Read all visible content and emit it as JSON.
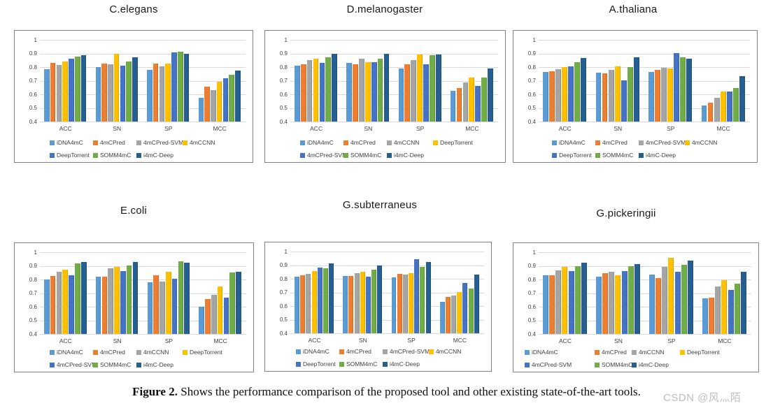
{
  "page": {
    "caption": {
      "label": "Figure 2.",
      "text": " Shows the performance comparison of the proposed tool and other existing state-of-the-art tools."
    },
    "watermark": "CSDN @风灬陌"
  },
  "palette": {
    "light_blue": "#5B9BD5",
    "orange": "#ED7D31",
    "gray": "#A5A5A5",
    "gold": "#FFC000",
    "blue": "#4472C4",
    "green": "#70AD47",
    "navy": "#255E91"
  },
  "chart_data": [
    {
      "type": "bar",
      "title": "C.elegans",
      "categories": [
        "ACC",
        "SN",
        "SP",
        "MCC"
      ],
      "ylim": [
        0.4,
        1.0
      ],
      "ytick_labels": [
        "1",
        "0.9",
        "0.8",
        "0.7",
        "0.6",
        "0.5",
        "0.4"
      ],
      "grid": true,
      "legend_position": "bottom",
      "series": [
        {
          "name": "iDNA4mC",
          "color": "#5B9BD5",
          "values": [
            0.785,
            0.8,
            0.777,
            0.572
          ]
        },
        {
          "name": "4mCPred",
          "color": "#ED7D31",
          "values": [
            0.829,
            0.826,
            0.828,
            0.654
          ]
        },
        {
          "name": "4mCPred-SVM",
          "color": "#A5A5A5",
          "values": [
            0.815,
            0.823,
            0.807,
            0.632
          ]
        },
        {
          "name": "4mCCNN",
          "color": "#FFC000",
          "values": [
            0.843,
            0.895,
            0.826,
            0.694
          ]
        },
        {
          "name": "DeepTorrent",
          "color": "#4472C4",
          "values": [
            0.86,
            0.812,
            0.907,
            0.718
          ]
        },
        {
          "name": "SOMM4mC",
          "color": "#70AD47",
          "values": [
            0.877,
            0.84,
            0.913,
            0.744
          ]
        },
        {
          "name": "i4mC-Deep",
          "color": "#255E91",
          "values": [
            0.885,
            0.874,
            0.9,
            0.773
          ]
        }
      ]
    },
    {
      "type": "bar",
      "title": "D.melanogaster",
      "categories": [
        "ACC",
        "SN",
        "SP",
        "MCC"
      ],
      "ylim": [
        0.4,
        1.0
      ],
      "ytick_labels": [
        "1",
        "0.9",
        "0.8",
        "0.7",
        "0.6",
        "0.5",
        "0.4"
      ],
      "grid": true,
      "legend_position": "bottom",
      "series": [
        {
          "name": "iDNA4mC",
          "color": "#5B9BD5",
          "values": [
            0.812,
            0.832,
            0.79,
            0.627
          ]
        },
        {
          "name": "4mCPred",
          "color": "#ED7D31",
          "values": [
            0.822,
            0.822,
            0.822,
            0.648
          ]
        },
        {
          "name": "4mCCNN",
          "color": "#A5A5A5",
          "values": [
            0.852,
            0.864,
            0.852,
            0.687
          ]
        },
        {
          "name": "DeepTorrent",
          "color": "#FFC000",
          "values": [
            0.862,
            0.834,
            0.89,
            0.724
          ]
        },
        {
          "name": "4mCPred-SVM",
          "color": "#4472C4",
          "values": [
            0.83,
            0.838,
            0.822,
            0.663
          ]
        },
        {
          "name": "SOMM4mC",
          "color": "#70AD47",
          "values": [
            0.873,
            0.863,
            0.887,
            0.722
          ]
        },
        {
          "name": "i4mC-Deep",
          "color": "#255E91",
          "values": [
            0.895,
            0.9,
            0.89,
            0.79
          ]
        }
      ]
    },
    {
      "type": "bar",
      "title": "A.thaliana",
      "categories": [
        "ACC",
        "SN",
        "SP",
        "MCC"
      ],
      "ylim": [
        0.4,
        1.0
      ],
      "ytick_labels": [
        "1",
        "0.9",
        "0.8",
        "0.7",
        "0.6",
        "0.5",
        "0.4"
      ],
      "grid": true,
      "legend_position": "bottom",
      "series": [
        {
          "name": "iDNA4mC",
          "color": "#5B9BD5",
          "values": [
            0.762,
            0.757,
            0.762,
            0.52
          ]
        },
        {
          "name": "4mCPred",
          "color": "#ED7D31",
          "values": [
            0.768,
            0.754,
            0.78,
            0.538
          ]
        },
        {
          "name": "4mCPred-SVM",
          "color": "#A5A5A5",
          "values": [
            0.787,
            0.778,
            0.797,
            0.573
          ]
        },
        {
          "name": "4mCCNN",
          "color": "#FFC000",
          "values": [
            0.8,
            0.805,
            0.792,
            0.622
          ]
        },
        {
          "name": "DeepTorrent",
          "color": "#4472C4",
          "values": [
            0.804,
            0.703,
            0.902,
            0.62
          ]
        },
        {
          "name": "SOMM4mC",
          "color": "#70AD47",
          "values": [
            0.835,
            0.8,
            0.873,
            0.647
          ]
        },
        {
          "name": "i4mC-Deep",
          "color": "#255E91",
          "values": [
            0.867,
            0.87,
            0.862,
            0.732
          ]
        }
      ]
    },
    {
      "type": "bar",
      "title": "E.coli",
      "categories": [
        "ACC",
        "SN",
        "SP",
        "MCC"
      ],
      "ylim": [
        0.4,
        1.0
      ],
      "ytick_labels": [
        "1",
        "0.9",
        "0.8",
        "0.7",
        "0.6",
        "0.5",
        "0.4"
      ],
      "grid": true,
      "legend_position": "bottom",
      "series": [
        {
          "name": "iDNA4mC",
          "color": "#5B9BD5",
          "values": [
            0.8,
            0.82,
            0.778,
            0.6
          ]
        },
        {
          "name": "4mCPred",
          "color": "#ED7D31",
          "values": [
            0.827,
            0.818,
            0.833,
            0.655
          ]
        },
        {
          "name": "4mCCNN",
          "color": "#A5A5A5",
          "values": [
            0.858,
            0.882,
            0.787,
            0.687
          ]
        },
        {
          "name": "DeepTorrent",
          "color": "#FFC000",
          "values": [
            0.873,
            0.89,
            0.857,
            0.747
          ]
        },
        {
          "name": "4mCPred-SVM",
          "color": "#4472C4",
          "values": [
            0.832,
            0.86,
            0.807,
            0.667
          ]
        },
        {
          "name": "SOMM4mC",
          "color": "#70AD47",
          "values": [
            0.92,
            0.904,
            0.933,
            0.853
          ]
        },
        {
          "name": "i4mC-Deep",
          "color": "#255E91",
          "values": [
            0.927,
            0.93,
            0.922,
            0.855
          ]
        }
      ]
    },
    {
      "type": "bar",
      "title": "G.subterraneus",
      "categories": [
        "ACC",
        "SN",
        "SP",
        "MCC"
      ],
      "ylim": [
        0.4,
        1.0
      ],
      "ytick_labels": [
        "1",
        "0.9",
        "0.8",
        "0.7",
        "0.6",
        "0.5",
        "0.4"
      ],
      "grid": true,
      "legend_position": "bottom",
      "series": [
        {
          "name": "iDNA4mC",
          "color": "#5B9BD5",
          "values": [
            0.815,
            0.822,
            0.808,
            0.632
          ]
        },
        {
          "name": "4mCPred",
          "color": "#ED7D31",
          "values": [
            0.828,
            0.818,
            0.838,
            0.665
          ]
        },
        {
          "name": "4mCPred-SVM",
          "color": "#A5A5A5",
          "values": [
            0.838,
            0.84,
            0.832,
            0.675
          ]
        },
        {
          "name": "4mCCNN",
          "color": "#FFC000",
          "values": [
            0.858,
            0.852,
            0.842,
            0.703
          ]
        },
        {
          "name": "DeepTorrent",
          "color": "#4472C4",
          "values": [
            0.88,
            0.813,
            0.945,
            0.768
          ]
        },
        {
          "name": "SOMM4mC",
          "color": "#70AD47",
          "values": [
            0.877,
            0.865,
            0.888,
            0.728
          ]
        },
        {
          "name": "i4mC-Deep",
          "color": "#255E91",
          "values": [
            0.912,
            0.9,
            0.925,
            0.832
          ]
        }
      ]
    },
    {
      "type": "bar",
      "title": "G.pickeringii",
      "categories": [
        "ACC",
        "SN",
        "SP",
        "MCC"
      ],
      "ylim": [
        0.4,
        1.0
      ],
      "ytick_labels": [
        "1",
        "0.9",
        "0.8",
        "0.7",
        "0.6",
        "0.5",
        "0.4"
      ],
      "grid": true,
      "legend_position": "bottom",
      "series": [
        {
          "name": "iDNA4mC",
          "color": "#5B9BD5",
          "values": [
            0.832,
            0.823,
            0.837,
            0.663
          ]
        },
        {
          "name": "4mCPred",
          "color": "#ED7D31",
          "values": [
            0.83,
            0.848,
            0.811,
            0.667
          ]
        },
        {
          "name": "4mCCNN",
          "color": "#A5A5A5",
          "values": [
            0.868,
            0.857,
            0.891,
            0.75
          ]
        },
        {
          "name": "DeepTorrent",
          "color": "#FFC000",
          "values": [
            0.893,
            0.831,
            0.957,
            0.794
          ]
        },
        {
          "name": "4mCPred-SVM",
          "color": "#4472C4",
          "values": [
            0.86,
            0.862,
            0.857,
            0.721
          ]
        },
        {
          "name": "SOMM4mC",
          "color": "#70AD47",
          "values": [
            0.9,
            0.895,
            0.909,
            0.77
          ]
        },
        {
          "name": "i4mC-Deep",
          "color": "#255E91",
          "values": [
            0.925,
            0.914,
            0.937,
            0.855
          ]
        }
      ]
    }
  ]
}
